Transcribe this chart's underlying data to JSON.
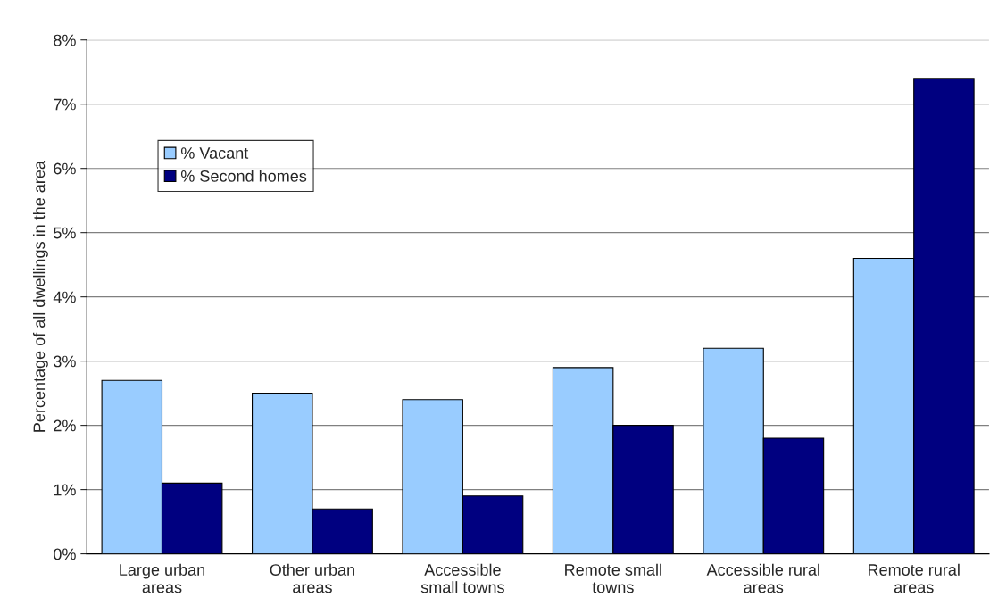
{
  "chart_data": {
    "type": "bar",
    "ylabel": "Percentage of all dwellings in the area",
    "categories": [
      "Large urban\nareas",
      "Other urban\nareas",
      "Accessible\nsmall towns",
      "Remote small\ntowns",
      "Accessible rural\nareas",
      "Remote rural\nareas"
    ],
    "series": [
      {
        "name": "% Vacant",
        "color": "#99ccff",
        "values": [
          2.7,
          2.5,
          2.4,
          2.9,
          3.2,
          4.6
        ]
      },
      {
        "name": "% Second homes",
        "color": "#000080",
        "values": [
          1.1,
          0.7,
          0.9,
          2.0,
          1.8,
          7.4
        ]
      }
    ],
    "ylim": [
      0,
      8
    ],
    "yticks": [
      {
        "value": 0,
        "label": "0%"
      },
      {
        "value": 1,
        "label": "1%"
      },
      {
        "value": 2,
        "label": "2%"
      },
      {
        "value": 3,
        "label": "3%"
      },
      {
        "value": 4,
        "label": "4%"
      },
      {
        "value": 5,
        "label": "5%"
      },
      {
        "value": 6,
        "label": "6%"
      },
      {
        "value": 7,
        "label": "7%"
      },
      {
        "value": 8,
        "label": "8%"
      }
    ],
    "grid": "y",
    "legend": "top left"
  }
}
